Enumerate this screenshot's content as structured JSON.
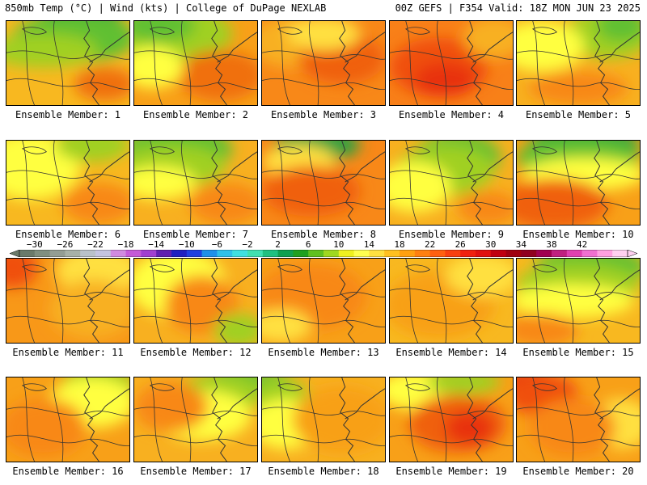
{
  "header": {
    "left": "850mb Temp (°C) | Wind (kts) | College of DuPage NEXLAB",
    "right": "00Z GEFS | F354 Valid: 18Z MON JUN 23 2025"
  },
  "colorbar": {
    "labels": [
      "−30",
      "−26",
      "−22",
      "−18",
      "−14",
      "−10",
      "−6",
      "−2",
      "2",
      "6",
      "10",
      "14",
      "18",
      "22",
      "26",
      "30",
      "34",
      "38",
      "42"
    ],
    "colors": [
      "#6a7a6a",
      "#7f8f7f",
      "#939d93",
      "#a7b1a7",
      "#b9c1c9",
      "#c4c4e0",
      "#d08ae0",
      "#c45ad8",
      "#a040d0",
      "#6020b0",
      "#2020c0",
      "#2040e0",
      "#2090e8",
      "#30c0e8",
      "#40e0e0",
      "#40e0b0",
      "#20c080",
      "#10a050",
      "#20a020",
      "#60c020",
      "#a0d820",
      "#f0f020",
      "#ffff50",
      "#ffe040",
      "#ffc020",
      "#ffa010",
      "#ff8010",
      "#ff6010",
      "#f84010",
      "#f02010",
      "#e01010",
      "#c00010",
      "#a00010",
      "#900020",
      "#a00050",
      "#c02080",
      "#e040b0",
      "#f070d0",
      "#ffa0e0",
      "#ffd0f0"
    ]
  },
  "members": [
    {
      "label": "Ensemble Member: 1",
      "base": "#f8b820",
      "blobs": [
        [
          "#30a040",
          0.6,
          0.05,
          0.35,
          0.28
        ],
        [
          "#60c030",
          0.55,
          0.2,
          0.5,
          0.3
        ],
        [
          "#a0d020",
          0.3,
          0.35,
          0.45,
          0.2
        ],
        [
          "#f07010",
          0.8,
          0.75,
          0.25,
          0.2
        ]
      ]
    },
    {
      "label": "Ensemble Member: 2",
      "base": "#f8a018",
      "blobs": [
        [
          "#a0d020",
          0.3,
          0.15,
          0.5,
          0.35
        ],
        [
          "#60c030",
          0.2,
          0.05,
          0.3,
          0.2
        ],
        [
          "#f07010",
          0.7,
          0.65,
          0.35,
          0.3
        ],
        [
          "#ffff40",
          0.15,
          0.55,
          0.25,
          0.25
        ]
      ]
    },
    {
      "label": "Ensemble Member: 3",
      "base": "#f88818",
      "blobs": [
        [
          "#f8b020",
          0.25,
          0.25,
          0.35,
          0.3
        ],
        [
          "#f06010",
          0.65,
          0.45,
          0.35,
          0.3
        ],
        [
          "#ffe040",
          0.5,
          0.15,
          0.3,
          0.2
        ]
      ]
    },
    {
      "label": "Ensemble Member: 4",
      "base": "#f88018",
      "blobs": [
        [
          "#f05010",
          0.4,
          0.55,
          0.4,
          0.35
        ],
        [
          "#e83010",
          0.45,
          0.7,
          0.25,
          0.2
        ],
        [
          "#f8b020",
          0.85,
          0.2,
          0.25,
          0.25
        ]
      ]
    },
    {
      "label": "Ensemble Member: 5",
      "base": "#f8b020",
      "blobs": [
        [
          "#a0d020",
          0.75,
          0.15,
          0.35,
          0.3
        ],
        [
          "#ffff40",
          0.2,
          0.3,
          0.35,
          0.3
        ],
        [
          "#60c030",
          0.85,
          0.05,
          0.2,
          0.2
        ],
        [
          "#f88818",
          0.5,
          0.8,
          0.4,
          0.2
        ]
      ]
    },
    {
      "label": "Ensemble Member: 6",
      "base": "#f8b820",
      "blobs": [
        [
          "#ffff40",
          0.2,
          0.3,
          0.4,
          0.4
        ],
        [
          "#a0d020",
          0.7,
          0.05,
          0.3,
          0.2
        ],
        [
          "#f88818",
          0.75,
          0.75,
          0.3,
          0.25
        ]
      ]
    },
    {
      "label": "Ensemble Member: 7",
      "base": "#f8b020",
      "blobs": [
        [
          "#60c030",
          0.35,
          0.1,
          0.45,
          0.28
        ],
        [
          "#a0d020",
          0.3,
          0.3,
          0.45,
          0.25
        ],
        [
          "#ffff40",
          0.2,
          0.5,
          0.3,
          0.2
        ],
        [
          "#f88818",
          0.75,
          0.75,
          0.3,
          0.25
        ]
      ]
    },
    {
      "label": "Ensemble Member: 8",
      "base": "#f88818",
      "blobs": [
        [
          "#30a040",
          0.45,
          0.05,
          0.35,
          0.2
        ],
        [
          "#ffe040",
          0.3,
          0.25,
          0.3,
          0.2
        ],
        [
          "#f06010",
          0.4,
          0.6,
          0.4,
          0.3
        ]
      ]
    },
    {
      "label": "Ensemble Member: 9",
      "base": "#f8b020",
      "blobs": [
        [
          "#60c030",
          0.55,
          0.2,
          0.35,
          0.3
        ],
        [
          "#a0d020",
          0.45,
          0.35,
          0.4,
          0.3
        ],
        [
          "#ffff40",
          0.2,
          0.55,
          0.3,
          0.3
        ],
        [
          "#f88818",
          0.8,
          0.8,
          0.25,
          0.2
        ]
      ]
    },
    {
      "label": "Ensemble Member: 10",
      "base": "#f8a018",
      "blobs": [
        [
          "#30a040",
          0.55,
          0.05,
          0.45,
          0.25
        ],
        [
          "#60c030",
          0.5,
          0.2,
          0.5,
          0.25
        ],
        [
          "#ffff40",
          0.55,
          0.4,
          0.5,
          0.2
        ],
        [
          "#f06010",
          0.3,
          0.75,
          0.45,
          0.3
        ]
      ]
    },
    {
      "label": "Ensemble Member: 11",
      "base": "#f89818",
      "blobs": [
        [
          "#f05010",
          0.05,
          0.1,
          0.2,
          0.25
        ],
        [
          "#ffe040",
          0.75,
          0.15,
          0.35,
          0.3
        ],
        [
          "#f8b020",
          0.7,
          0.6,
          0.35,
          0.35
        ]
      ]
    },
    {
      "label": "Ensemble Member: 12",
      "base": "#f8b020",
      "blobs": [
        [
          "#ffff40",
          0.35,
          0.3,
          0.4,
          0.4
        ],
        [
          "#f88818",
          0.55,
          0.55,
          0.3,
          0.35
        ],
        [
          "#a0d020",
          0.85,
          0.85,
          0.2,
          0.2
        ]
      ]
    },
    {
      "label": "Ensemble Member: 13",
      "base": "#f8a018",
      "blobs": [
        [
          "#f88818",
          0.4,
          0.45,
          0.45,
          0.4
        ],
        [
          "#ffe040",
          0.15,
          0.8,
          0.25,
          0.2
        ]
      ]
    },
    {
      "label": "Ensemble Member: 14",
      "base": "#f8b820",
      "blobs": [
        [
          "#f8a018",
          0.4,
          0.55,
          0.45,
          0.4
        ],
        [
          "#ffe040",
          0.75,
          0.2,
          0.3,
          0.25
        ]
      ]
    },
    {
      "label": "Ensemble Member: 15",
      "base": "#f8b820",
      "blobs": [
        [
          "#60c030",
          0.6,
          0.1,
          0.45,
          0.25
        ],
        [
          "#a0d020",
          0.5,
          0.3,
          0.5,
          0.25
        ],
        [
          "#ffff40",
          0.45,
          0.5,
          0.5,
          0.2
        ],
        [
          "#f88818",
          0.2,
          0.85,
          0.3,
          0.2
        ]
      ]
    },
    {
      "label": "Ensemble Member: 16",
      "base": "#f8a018",
      "blobs": [
        [
          "#a0d020",
          0.75,
          0.1,
          0.3,
          0.25
        ],
        [
          "#ffff40",
          0.7,
          0.3,
          0.35,
          0.3
        ],
        [
          "#f88818",
          0.3,
          0.6,
          0.35,
          0.35
        ]
      ]
    },
    {
      "label": "Ensemble Member: 17",
      "base": "#f8b020",
      "blobs": [
        [
          "#60c030",
          0.85,
          0.05,
          0.25,
          0.2
        ],
        [
          "#a0d020",
          0.7,
          0.2,
          0.35,
          0.25
        ],
        [
          "#ffff40",
          0.55,
          0.45,
          0.4,
          0.3
        ],
        [
          "#f88818",
          0.3,
          0.35,
          0.3,
          0.3
        ]
      ]
    },
    {
      "label": "Ensemble Member: 18",
      "base": "#f8b020",
      "blobs": [
        [
          "#60c030",
          0.05,
          0.1,
          0.2,
          0.2
        ],
        [
          "#a0d020",
          0.15,
          0.3,
          0.25,
          0.3
        ],
        [
          "#ffff40",
          0.2,
          0.55,
          0.3,
          0.3
        ],
        [
          "#f8a018",
          0.65,
          0.5,
          0.4,
          0.4
        ]
      ]
    },
    {
      "label": "Ensemble Member: 19",
      "base": "#f8a018",
      "blobs": [
        [
          "#ffff40",
          0.3,
          0.15,
          0.4,
          0.25
        ],
        [
          "#a0d020",
          0.6,
          0.05,
          0.3,
          0.15
        ],
        [
          "#f06010",
          0.55,
          0.55,
          0.4,
          0.35
        ],
        [
          "#e83010",
          0.65,
          0.6,
          0.2,
          0.2
        ]
      ]
    },
    {
      "label": "Ensemble Member: 20",
      "base": "#f8a018",
      "blobs": [
        [
          "#e01010",
          0.1,
          0.05,
          0.2,
          0.15
        ],
        [
          "#f05010",
          0.2,
          0.2,
          0.3,
          0.25
        ],
        [
          "#ffe040",
          0.85,
          0.55,
          0.25,
          0.3
        ],
        [
          "#f88818",
          0.45,
          0.6,
          0.35,
          0.35
        ]
      ]
    }
  ]
}
